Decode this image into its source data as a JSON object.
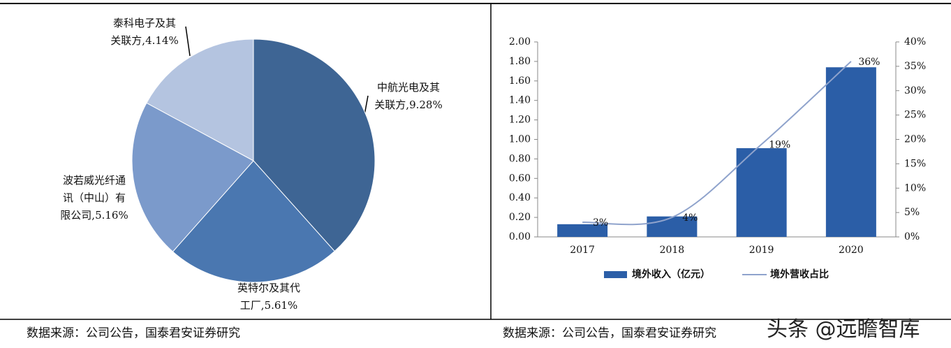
{
  "chart_data": [
    {
      "type": "pie",
      "categories": [
        "中航光电及其关联方,",
        "英特尔及其代工厂,",
        "波若威光纤通讯（中山）有限公司,",
        "泰科电子及其关联方,"
      ],
      "values": [
        9.28,
        5.61,
        5.16,
        4.14
      ],
      "value_labels": [
        "9.28%",
        "5.61%",
        "5.16%",
        "4.14%"
      ],
      "colors": [
        "#3e6594",
        "#4a77b0",
        "#7b9acb",
        "#b4c4e0"
      ],
      "source": "数据来源：公司公告，国泰君安证券研究"
    },
    {
      "type": "bar-line",
      "categories": [
        "2017",
        "2018",
        "2019",
        "2020"
      ],
      "series": [
        {
          "name": "境外收入（亿元）",
          "color": "#2b5ea7",
          "type": "bar",
          "values": [
            0.13,
            0.21,
            0.91,
            1.74
          ]
        },
        {
          "name": "境外营收占比",
          "color": "#8fa3cc",
          "type": "line",
          "axis": "y2",
          "values": [
            3,
            4,
            19,
            36
          ],
          "value_labels": [
            "3%",
            "4%",
            "19%",
            "36%"
          ]
        }
      ],
      "ylim": [
        0,
        2
      ],
      "yticks": [
        {
          "value": 0,
          "label": "0.00"
        },
        {
          "value": 0.2,
          "label": "0.20"
        },
        {
          "value": 0.4,
          "label": "0.40"
        },
        {
          "value": 0.6,
          "label": "0.60"
        },
        {
          "value": 0.8,
          "label": "0.80"
        },
        {
          "value": 1,
          "label": "1.00"
        },
        {
          "value": 1.2,
          "label": "1.20"
        },
        {
          "value": 1.4,
          "label": "1.40"
        },
        {
          "value": 1.6,
          "label": "1.60"
        },
        {
          "value": 1.8,
          "label": "1.80"
        },
        {
          "value": 2,
          "label": "2.00"
        }
      ],
      "y2lim": [
        0,
        40
      ],
      "y2ticks": [
        {
          "value": 0,
          "label": "0%"
        },
        {
          "value": 5,
          "label": "5%"
        },
        {
          "value": 10,
          "label": "10%"
        },
        {
          "value": 15,
          "label": "15%"
        },
        {
          "value": 20,
          "label": "20%"
        },
        {
          "value": 25,
          "label": "25%"
        },
        {
          "value": 30,
          "label": "30%"
        },
        {
          "value": 35,
          "label": "35%"
        },
        {
          "value": 40,
          "label": "40%"
        }
      ],
      "legend": "bottom",
      "source": "数据来源：公司公告，国泰君安证券研究"
    }
  ],
  "watermark": "头条 @远瞻智库"
}
